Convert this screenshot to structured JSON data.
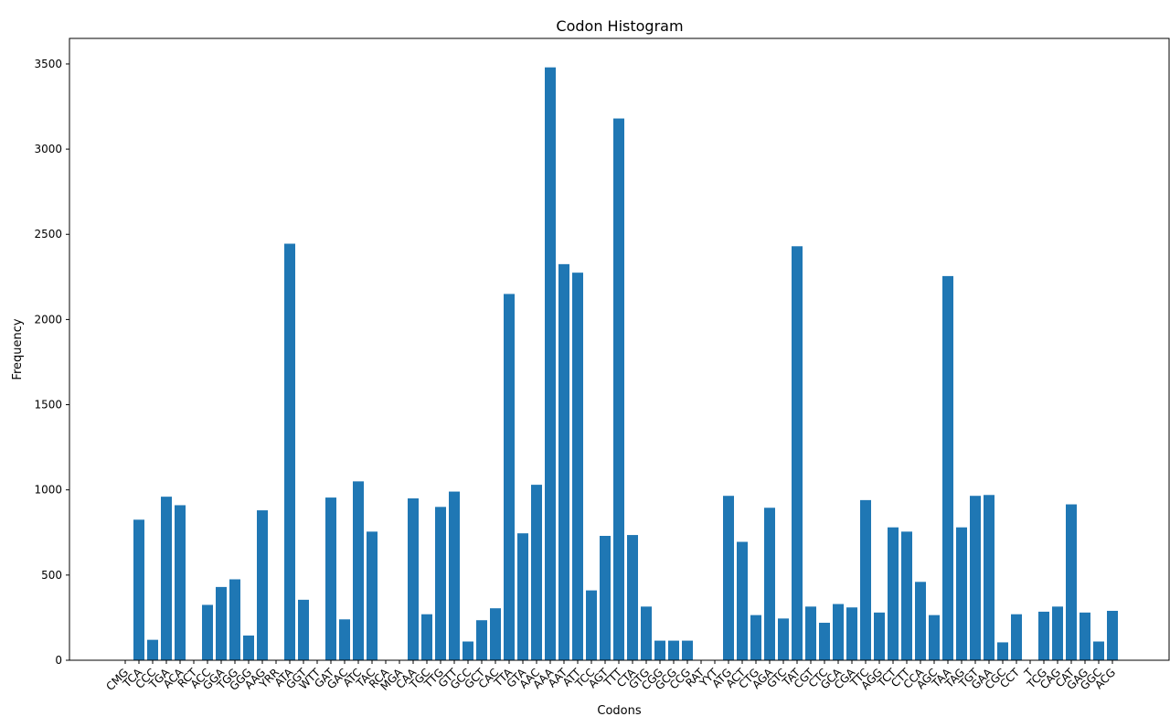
{
  "chart_data": {
    "type": "bar",
    "title": "Codon Histogram",
    "xlabel": "Codons",
    "ylabel": "Frequency",
    "ylim": [
      0,
      3650
    ],
    "yticks": [
      0,
      500,
      1000,
      1500,
      2000,
      2500,
      3000,
      3500
    ],
    "grid": false,
    "bar_color": "#1f77b4",
    "categories": [
      "CMG",
      "TCA",
      "CCC",
      "TGA",
      "ACA",
      "RCT",
      "ACC",
      "GGA",
      "TGG",
      "GGG",
      "AAG",
      "YRR",
      "ATA",
      "GGT",
      "WTT",
      "GAT",
      "GAC",
      "ATC",
      "TAC",
      "RCA",
      "MGA",
      "CAA",
      "TGC",
      "TTG",
      "GTT",
      "GCC",
      "GCT",
      "CAC",
      "TTA",
      "GTA",
      "AAC",
      "AAA",
      "AAT",
      "ATT",
      "TCC",
      "AGT",
      "TTT",
      "CTA",
      "GTG",
      "CGG",
      "GCG",
      "CCG",
      "RAT",
      "YYT",
      "ATG",
      "ACT",
      "CTG",
      "AGA",
      "GTC",
      "TAT",
      "CGT",
      "CTC",
      "GCA",
      "CGA",
      "TTC",
      "AGG",
      "TCT",
      "CTT",
      "CCA",
      "AGC",
      "TAA",
      "TAG",
      "TGT",
      "GAA",
      "CGC",
      "CCT",
      "T",
      "TCG",
      "CAG",
      "CAT",
      "GAG",
      "GGC",
      "ACG"
    ],
    "values": [
      0,
      825,
      120,
      960,
      910,
      0,
      325,
      430,
      475,
      145,
      880,
      0,
      2445,
      355,
      0,
      955,
      240,
      1050,
      755,
      0,
      0,
      950,
      270,
      900,
      990,
      110,
      235,
      305,
      2150,
      745,
      1030,
      3480,
      2325,
      2275,
      410,
      730,
      3180,
      735,
      315,
      115,
      115,
      115,
      0,
      0,
      965,
      695,
      265,
      895,
      245,
      2430,
      315,
      220,
      330,
      310,
      940,
      280,
      780,
      755,
      460,
      265,
      2255,
      780,
      965,
      970,
      105,
      270,
      0,
      285,
      315,
      915,
      280,
      110,
      290
    ]
  }
}
